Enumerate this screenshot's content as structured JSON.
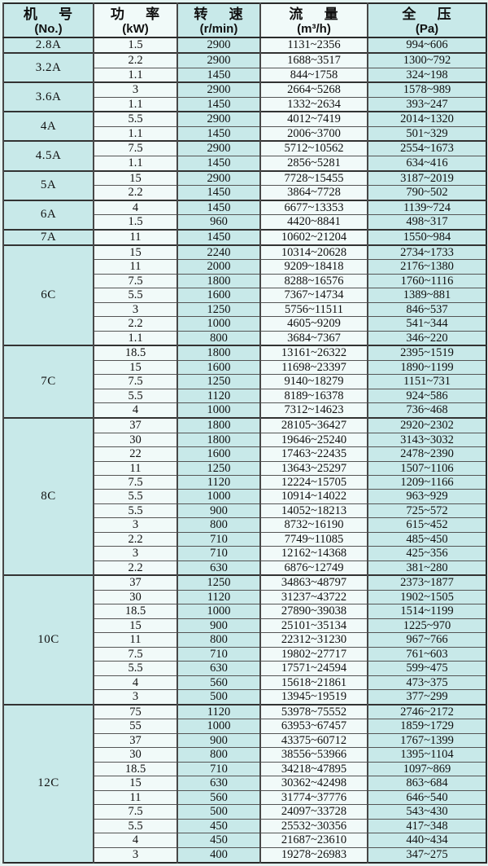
{
  "page": {
    "background": "#e4f3f1"
  },
  "table": {
    "colors": {
      "cyan_column": "#c8e9e9",
      "pale_column": "#f1faf9",
      "grid_line": "#555555",
      "frame_line": "#2a2a2a",
      "text": "#101010"
    },
    "columns": [
      {
        "title": "机 号",
        "unit": "(No.)"
      },
      {
        "title": "功 率",
        "unit": "(kW)"
      },
      {
        "title": "转 速",
        "unit": "(r/min)"
      },
      {
        "title": "流 量",
        "unit": "(m³/h)"
      },
      {
        "title": "全 压",
        "unit": "(Pa)"
      }
    ],
    "groups": [
      {
        "model": "2.8A",
        "rows": [
          [
            "1.5",
            "2900",
            "1131~2356",
            "994~606"
          ]
        ]
      },
      {
        "model": "3.2A",
        "rows": [
          [
            "2.2",
            "2900",
            "1688~3517",
            "1300~792"
          ],
          [
            "1.1",
            "1450",
            "844~1758",
            "324~198"
          ]
        ]
      },
      {
        "model": "3.6A",
        "rows": [
          [
            "3",
            "2900",
            "2664~5268",
            "1578~989"
          ],
          [
            "1.1",
            "1450",
            "1332~2634",
            "393~247"
          ]
        ]
      },
      {
        "model": "4A",
        "rows": [
          [
            "5.5",
            "2900",
            "4012~7419",
            "2014~1320"
          ],
          [
            "1.1",
            "1450",
            "2006~3700",
            "501~329"
          ]
        ]
      },
      {
        "model": "4.5A",
        "rows": [
          [
            "7.5",
            "2900",
            "5712~10562",
            "2554~1673"
          ],
          [
            "1.1",
            "1450",
            "2856~5281",
            "634~416"
          ]
        ]
      },
      {
        "model": "5A",
        "rows": [
          [
            "15",
            "2900",
            "7728~15455",
            "3187~2019"
          ],
          [
            "2.2",
            "1450",
            "3864~7728",
            "790~502"
          ]
        ]
      },
      {
        "model": "6A",
        "rows": [
          [
            "4",
            "1450",
            "6677~13353",
            "1139~724"
          ],
          [
            "1.5",
            "960",
            "4420~8841",
            "498~317"
          ]
        ]
      },
      {
        "model": "7A",
        "rows": [
          [
            "11",
            "1450",
            "10602~21204",
            "1550~984"
          ]
        ]
      },
      {
        "model": "6C",
        "rows": [
          [
            "15",
            "2240",
            "10314~20628",
            "2734~1733"
          ],
          [
            "11",
            "2000",
            "9209~18418",
            "2176~1380"
          ],
          [
            "7.5",
            "1800",
            "8288~16576",
            "1760~1116"
          ],
          [
            "5.5",
            "1600",
            "7367~14734",
            "1389~881"
          ],
          [
            "3",
            "1250",
            "5756~11511",
            "846~537"
          ],
          [
            "2.2",
            "1000",
            "4605~9209",
            "541~344"
          ],
          [
            "1.1",
            "800",
            "3684~7367",
            "346~220"
          ]
        ]
      },
      {
        "model": "7C",
        "rows": [
          [
            "18.5",
            "1800",
            "13161~26322",
            "2395~1519"
          ],
          [
            "15",
            "1600",
            "11698~23397",
            "1890~1199"
          ],
          [
            "7.5",
            "1250",
            "9140~18279",
            "1151~731"
          ],
          [
            "5.5",
            "1120",
            "8189~16378",
            "924~586"
          ],
          [
            "4",
            "1000",
            "7312~14623",
            "736~468"
          ]
        ]
      },
      {
        "model": "8C",
        "rows": [
          [
            "37",
            "1800",
            "28105~36427",
            "2920~2302"
          ],
          [
            "30",
            "1800",
            "19646~25240",
            "3143~3032"
          ],
          [
            "22",
            "1600",
            "17463~22435",
            "2478~2390"
          ],
          [
            "11",
            "1250",
            "13643~25297",
            "1507~1106"
          ],
          [
            "7.5",
            "1120",
            "12224~15705",
            "1209~1166"
          ],
          [
            "5.5",
            "1000",
            "10914~14022",
            "963~929"
          ],
          [
            "5.5",
            "900",
            "14052~18213",
            "725~572"
          ],
          [
            "3",
            "800",
            "8732~16190",
            "615~452"
          ],
          [
            "2.2",
            "710",
            "7749~11085",
            "485~450"
          ],
          [
            "3",
            "710",
            "12162~14368",
            "425~356"
          ],
          [
            "2.2",
            "630",
            "6876~12749",
            "381~280"
          ]
        ]
      },
      {
        "model": "10C",
        "rows": [
          [
            "37",
            "1250",
            "34863~48797",
            "2373~1877"
          ],
          [
            "30",
            "1120",
            "31237~43722",
            "1902~1505"
          ],
          [
            "18.5",
            "1000",
            "27890~39038",
            "1514~1199"
          ],
          [
            "15",
            "900",
            "25101~35134",
            "1225~970"
          ],
          [
            "11",
            "800",
            "22312~31230",
            "967~766"
          ],
          [
            "7.5",
            "710",
            "19802~27717",
            "761~603"
          ],
          [
            "5.5",
            "630",
            "17571~24594",
            "599~475"
          ],
          [
            "4",
            "560",
            "15618~21861",
            "473~375"
          ],
          [
            "3",
            "500",
            "13945~19519",
            "377~299"
          ]
        ]
      },
      {
        "model": "12C",
        "rows": [
          [
            "75",
            "1120",
            "53978~75552",
            "2746~2172"
          ],
          [
            "55",
            "1000",
            "63953~67457",
            "1859~1729"
          ],
          [
            "37",
            "900",
            "43375~60712",
            "1767~1399"
          ],
          [
            "30",
            "800",
            "38556~53966",
            "1395~1104"
          ],
          [
            "18.5",
            "710",
            "34218~47895",
            "1097~869"
          ],
          [
            "15",
            "630",
            "30362~42498",
            "863~684"
          ],
          [
            "11",
            "560",
            "31774~37776",
            "646~540"
          ],
          [
            "7.5",
            "500",
            "24097~33728",
            "543~430"
          ],
          [
            "5.5",
            "450",
            "25532~30356",
            "417~348"
          ],
          [
            "4",
            "450",
            "21687~23610",
            "440~434"
          ],
          [
            "3",
            "400",
            "19278~26983",
            "347~275"
          ]
        ]
      }
    ]
  }
}
